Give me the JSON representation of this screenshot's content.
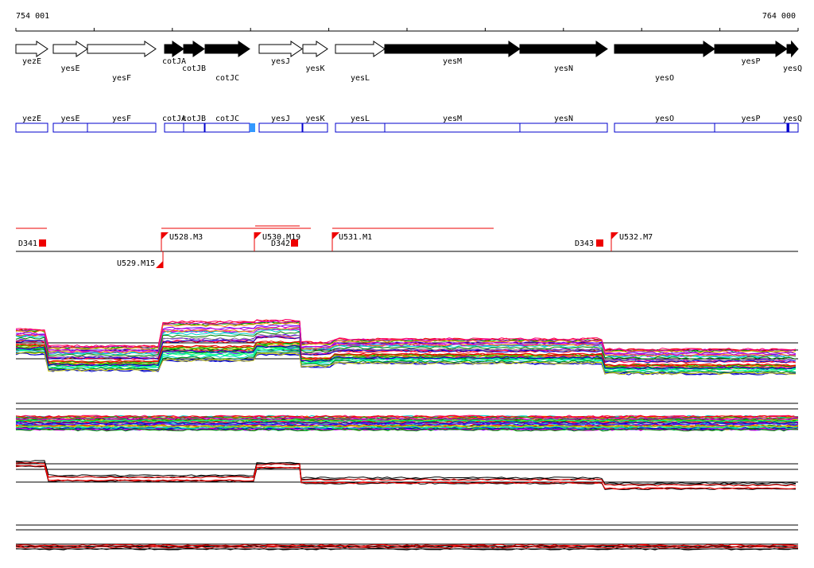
{
  "ruler": {
    "start": "754 001",
    "end": "764 000"
  },
  "genes": [
    "yezE",
    "yesE",
    "yesF",
    "cotJA",
    "cotJB",
    "cotJC",
    "yesJ",
    "yesK",
    "yesL",
    "yesM",
    "yesN",
    "yesO",
    "yesP",
    "yesQ"
  ],
  "markers": [
    "D341",
    "U528.M3",
    "U530.M19",
    "D342",
    "U531.M1",
    "D343",
    "U532.M7",
    "U529.M15"
  ]
}
